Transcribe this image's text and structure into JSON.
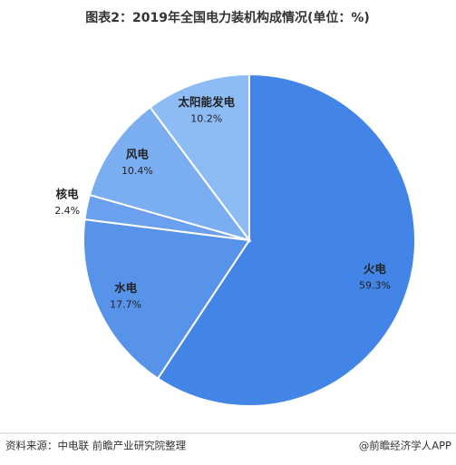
{
  "chart_data": {
    "type": "pie",
    "title": "图表2：2019年全国电力装机构成情况(单位：%)",
    "categories": [
      "火电",
      "水电",
      "核电",
      "风电",
      "太阳能发电"
    ],
    "values": [
      59.3,
      17.7,
      2.4,
      10.4,
      10.2
    ],
    "value_labels": [
      "59.3%",
      "17.7%",
      "2.4%",
      "10.4%",
      "10.2%"
    ],
    "colors": [
      "#4385e6",
      "#5893ea",
      "#6aa0ed",
      "#7baef1",
      "#8dbcf5"
    ],
    "source": "资料来源：中电联 前瞻产业研究院整理",
    "watermark": "@前瞻经济学人APP"
  }
}
